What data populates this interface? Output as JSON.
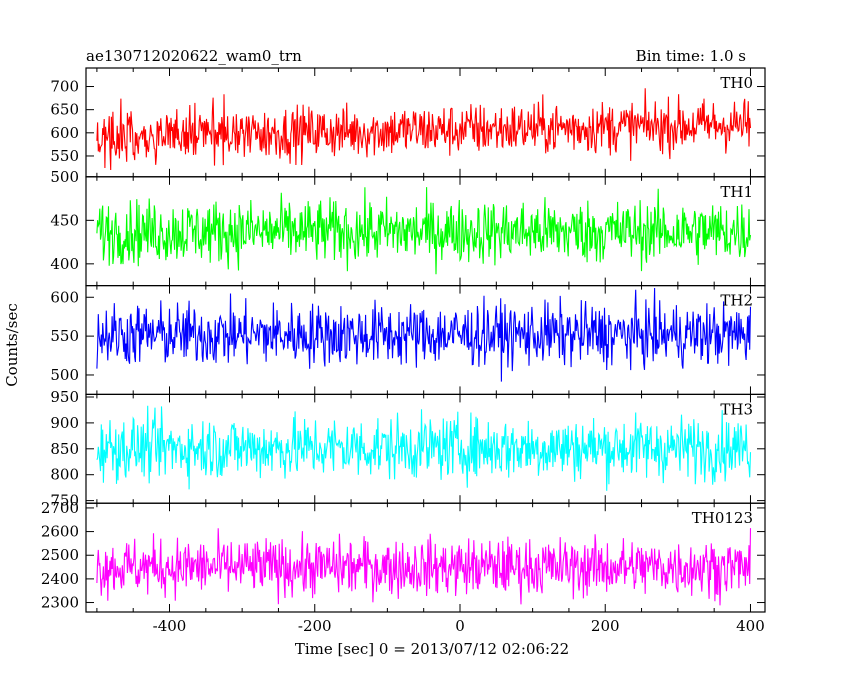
{
  "header": {
    "title": "ae130712020622_wam0_trn",
    "bin_time": "Bin time: 1.0 s"
  },
  "axes": {
    "xlabel": "Time [sec] 0 = 2013/07/12 02:06:22",
    "ylabel": "Counts/sec"
  },
  "chart_data": {
    "type": "line",
    "xlim": [
      -515,
      420
    ],
    "x_ticks": [
      -400,
      -200,
      0,
      200,
      400
    ],
    "x_range": [
      -500,
      400
    ],
    "bin_time_s": 1.0,
    "panels": [
      {
        "name": "TH0",
        "color": "#ff0000",
        "ylim": [
          505,
          740
        ],
        "y_ticks": [
          550,
          600,
          650,
          700
        ],
        "mean": 605,
        "std": 28
      },
      {
        "name": "TH1",
        "color": "#00ff00",
        "ylim": [
          375,
          500
        ],
        "y_ticks": [
          400,
          450,
          500
        ],
        "mean": 437,
        "std": 18
      },
      {
        "name": "TH2",
        "color": "#0000ff",
        "ylim": [
          475,
          615
        ],
        "y_ticks": [
          500,
          550,
          600
        ],
        "mean": 552,
        "std": 20
      },
      {
        "name": "TH3",
        "color": "#00ffff",
        "ylim": [
          745,
          955
        ],
        "y_ticks": [
          750,
          800,
          850,
          900,
          950
        ],
        "mean": 852,
        "std": 30
      },
      {
        "name": "TH0123",
        "color": "#ff00ff",
        "ylim": [
          2260,
          2720
        ],
        "y_ticks": [
          2300,
          2400,
          2500,
          2600,
          2700
        ],
        "mean": 2450,
        "std": 60
      }
    ]
  }
}
